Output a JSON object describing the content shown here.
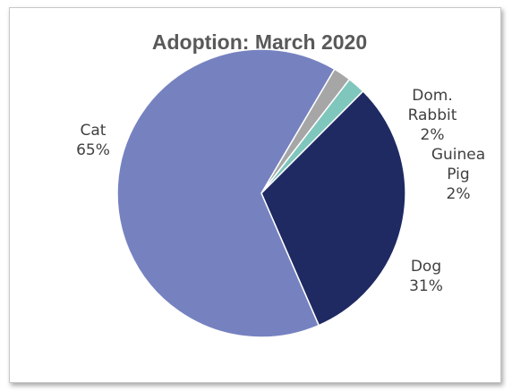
{
  "chart_data": {
    "type": "pie",
    "title": "Adoption: March 2020",
    "slices": [
      {
        "label": [
          "Dom.",
          "Rabbit"
        ],
        "value": 2,
        "pct_label": "2%",
        "color": "#a6a6a6"
      },
      {
        "label": [
          "Guinea",
          "Pig"
        ],
        "value": 2,
        "pct_label": "2%",
        "color": "#7fc6bd"
      },
      {
        "label": [
          "Dog"
        ],
        "value": 31,
        "pct_label": "31%",
        "color": "#1f2a63"
      },
      {
        "label": [
          "Cat"
        ],
        "value": 65,
        "pct_label": "65%",
        "color": "#7682c0"
      }
    ]
  }
}
